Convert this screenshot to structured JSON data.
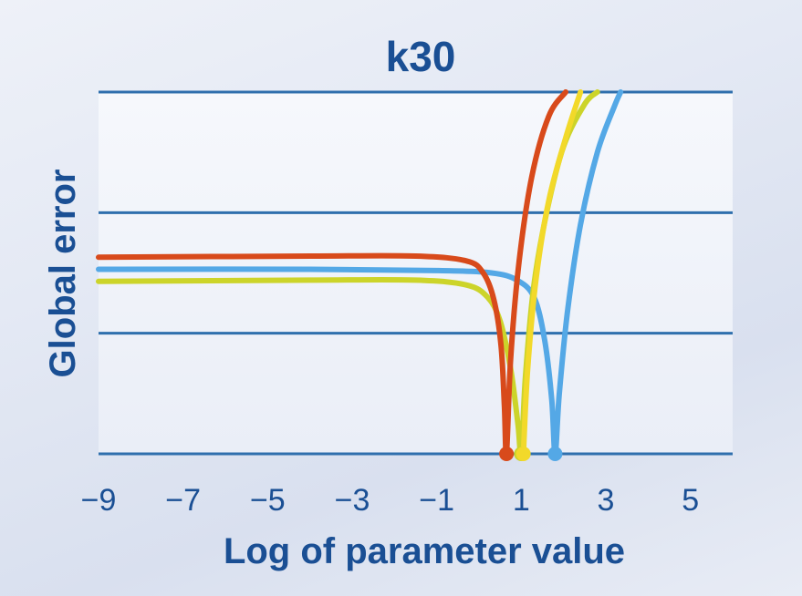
{
  "chart_data": {
    "type": "line",
    "title": "k30",
    "xlabel": "Log of parameter value",
    "ylabel": "Global error",
    "xlim": [
      -9,
      6
    ],
    "ylim": [
      0,
      3
    ],
    "x_ticks": [
      -9,
      -7,
      -5,
      -3,
      -1,
      1,
      3,
      5
    ],
    "x_tick_labels": [
      "−9",
      "−7",
      "−5",
      "−3",
      "−1",
      "1",
      "3",
      "5"
    ],
    "y_gridlines": [
      0,
      1,
      2,
      3
    ],
    "y_tick_labels_shown": false,
    "grid": true,
    "series": [
      {
        "color": "#54a8e6",
        "min_x": 1.8,
        "points": [
          [
            -9,
            1.53
          ],
          [
            -4,
            1.53
          ],
          [
            -1,
            1.52
          ],
          [
            0.3,
            1.5
          ],
          [
            0.9,
            1.44
          ],
          [
            1.3,
            1.3
          ],
          [
            1.55,
            0.95
          ],
          [
            1.72,
            0.45
          ],
          [
            1.8,
            0.0
          ],
          [
            1.9,
            0.5
          ],
          [
            2.1,
            1.2
          ],
          [
            2.4,
            1.9
          ],
          [
            2.8,
            2.5
          ],
          [
            3.2,
            2.88
          ],
          [
            3.35,
            3.0
          ]
        ]
      },
      {
        "color": "#ccd42a",
        "min_x": 1.0,
        "points": [
          [
            -9,
            1.43
          ],
          [
            -4,
            1.44
          ],
          [
            -1.5,
            1.44
          ],
          [
            -0.3,
            1.4
          ],
          [
            0.2,
            1.3
          ],
          [
            0.5,
            1.1
          ],
          [
            0.75,
            0.7
          ],
          [
            0.92,
            0.25
          ],
          [
            1.0,
            0.0
          ],
          [
            1.1,
            0.65
          ],
          [
            1.3,
            1.4
          ],
          [
            1.6,
            2.0
          ],
          [
            2.0,
            2.55
          ],
          [
            2.5,
            2.9
          ],
          [
            2.8,
            3.0
          ]
        ]
      },
      {
        "color": "#f2d92a",
        "min_x": 1.05,
        "points": [
          [
            1.05,
            0.0
          ],
          [
            1.15,
            0.7
          ],
          [
            1.35,
            1.45
          ],
          [
            1.65,
            2.1
          ],
          [
            2.05,
            2.62
          ],
          [
            2.4,
            3.0
          ]
        ]
      },
      {
        "color": "#d84a1b",
        "min_x": 0.65,
        "points": [
          [
            -9,
            1.63
          ],
          [
            -4,
            1.64
          ],
          [
            -1.5,
            1.64
          ],
          [
            -0.3,
            1.6
          ],
          [
            0.1,
            1.5
          ],
          [
            0.35,
            1.28
          ],
          [
            0.52,
            0.9
          ],
          [
            0.6,
            0.4
          ],
          [
            0.65,
            0.0
          ],
          [
            0.75,
            0.8
          ],
          [
            0.95,
            1.6
          ],
          [
            1.25,
            2.3
          ],
          [
            1.65,
            2.8
          ],
          [
            2.05,
            3.0
          ]
        ]
      }
    ]
  }
}
